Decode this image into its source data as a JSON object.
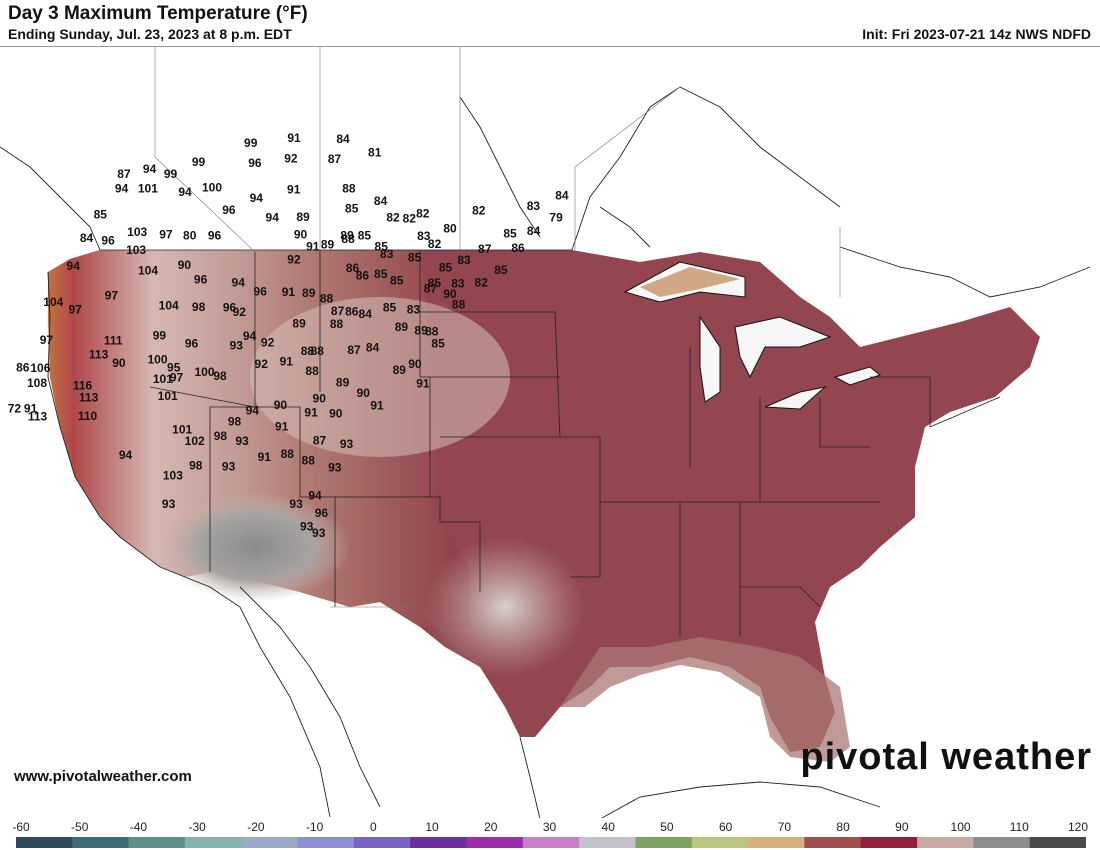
{
  "header": {
    "title": "Day 3 Maximum Temperature (°F)",
    "subtitle": "Ending Sunday, Jul. 23, 2023 at 8 p.m. EDT",
    "init": "Init: Fri 2023-07-21 14z NWS NDFD"
  },
  "footer": {
    "website": "www.pivotalweather.com",
    "brand": "pivotal weather"
  },
  "colorbar": {
    "ticks": [
      "-60",
      "-50",
      "-40",
      "-30",
      "-20",
      "-10",
      "0",
      "10",
      "20",
      "30",
      "40",
      "50",
      "60",
      "70",
      "80",
      "90",
      "100",
      "110",
      "120"
    ],
    "colors": [
      "#2c4a57",
      "#3f6b77",
      "#5e8f8c",
      "#85b2ad",
      "#9aa9c8",
      "#8c8fd0",
      "#7a63c4",
      "#6b2e9e",
      "#9c2ea7",
      "#c97ec9",
      "#c2c2c8",
      "#7fa35e",
      "#b9c67e",
      "#d6b27b",
      "#a04f4f",
      "#8f1f3c",
      "#c8a8a2",
      "#8d8d8d",
      "#4a4a4a"
    ]
  },
  "map": {
    "temperatures": [
      {
        "v": "87",
        "lon": -123.4,
        "lat": 48.0
      },
      {
        "v": "94",
        "lon": -120.2,
        "lat": 47.9
      },
      {
        "v": "94",
        "lon": -122.6,
        "lat": 47.1
      },
      {
        "v": "101",
        "lon": -119.0,
        "lat": 46.7
      },
      {
        "v": "99",
        "lon": -117.0,
        "lat": 47.3
      },
      {
        "v": "99",
        "lon": -114.1,
        "lat": 47.7
      },
      {
        "v": "99",
        "lon": -108.5,
        "lat": 48.3
      },
      {
        "v": "91",
        "lon": -103.3,
        "lat": 48.3
      },
      {
        "v": "84",
        "lon": -97.1,
        "lat": 48.0
      },
      {
        "v": "85",
        "lon": -123.6,
        "lat": 45.8
      },
      {
        "v": "84",
        "lon": -123.7,
        "lat": 44.5
      },
      {
        "v": "94",
        "lon": -123.4,
        "lat": 42.9
      },
      {
        "v": "96",
        "lon": -120.6,
        "lat": 44.0
      },
      {
        "v": "103",
        "lon": -117.3,
        "lat": 44.1
      },
      {
        "v": "103",
        "lon": -116.2,
        "lat": 43.0
      },
      {
        "v": "97",
        "lon": -113.4,
        "lat": 43.6
      },
      {
        "v": "94",
        "lon": -113.8,
        "lat": 46.0
      },
      {
        "v": "100",
        "lon": -110.6,
        "lat": 46.0
      },
      {
        "v": "96",
        "lon": -106.7,
        "lat": 47.1
      },
      {
        "v": "92",
        "lon": -102.4,
        "lat": 47.1
      },
      {
        "v": "87",
        "lon": -97.0,
        "lat": 46.9
      },
      {
        "v": "81",
        "lon": -92.5,
        "lat": 47.2
      },
      {
        "v": "91",
        "lon": -100.2,
        "lat": 45.3
      },
      {
        "v": "88",
        "lon": -93.6,
        "lat": 45.2
      },
      {
        "v": "85",
        "lon": -92.2,
        "lat": 44.1
      },
      {
        "v": "84",
        "lon": -89.2,
        "lat": 44.5
      },
      {
        "v": "94",
        "lon": -104.3,
        "lat": 45.0
      },
      {
        "v": "96",
        "lon": -107.0,
        "lat": 44.5
      },
      {
        "v": "80",
        "lon": -110.3,
        "lat": 43.3
      },
      {
        "v": "96",
        "lon": -107.2,
        "lat": 43.1
      },
      {
        "v": "89",
        "lon": -97.5,
        "lat": 43.7
      },
      {
        "v": "94",
        "lon": -101.2,
        "lat": 43.8
      },
      {
        "v": "90",
        "lon": -96.8,
        "lat": 42.7
      },
      {
        "v": "89",
        "lon": -93.1,
        "lat": 42.1
      },
      {
        "v": "88",
        "lon": -91.0,
        "lat": 42.4
      },
      {
        "v": "85",
        "lon": -89.3,
        "lat": 42.6
      },
      {
        "v": "82",
        "lon": -86.9,
        "lat": 43.6
      },
      {
        "v": "82",
        "lon": -85.0,
        "lat": 43.6
      },
      {
        "v": "82",
        "lon": -83.7,
        "lat": 43.9
      },
      {
        "v": "83",
        "lon": -82.5,
        "lat": 42.7
      },
      {
        "v": "80",
        "lon": -79.9,
        "lat": 43.2
      },
      {
        "v": "82",
        "lon": -77.5,
        "lat": 44.3
      },
      {
        "v": "83",
        "lon": -71.6,
        "lat": 44.9
      },
      {
        "v": "84",
        "lon": -68.9,
        "lat": 45.7
      },
      {
        "v": "79",
        "lon": -68.6,
        "lat": 44.5
      },
      {
        "v": "85",
        "lon": -73.0,
        "lat": 43.3
      },
      {
        "v": "84",
        "lon": -70.5,
        "lat": 43.6
      },
      {
        "v": "86",
        "lon": -71.5,
        "lat": 42.6
      },
      {
        "v": "87",
        "lon": -75.1,
        "lat": 42.3
      },
      {
        "v": "83",
        "lon": -76.9,
        "lat": 41.6
      },
      {
        "v": "85",
        "lon": -78.6,
        "lat": 41.1
      },
      {
        "v": "82",
        "lon": -80.9,
        "lat": 42.3
      },
      {
        "v": "85",
        "lon": -82.5,
        "lat": 41.5
      },
      {
        "v": "85",
        "lon": -86.8,
        "lat": 42.0
      },
      {
        "v": "104",
        "lon": -123.4,
        "lat": 40.9
      },
      {
        "v": "97",
        "lon": -120.0,
        "lat": 40.1
      },
      {
        "v": "97",
        "lon": -116.3,
        "lat": 40.5
      },
      {
        "v": "104",
        "lon": -113.3,
        "lat": 41.6
      },
      {
        "v": "90",
        "lon": -109.1,
        "lat": 41.6
      },
      {
        "v": "96",
        "lon": -106.2,
        "lat": 40.6
      },
      {
        "v": "104",
        "lon": -108.5,
        "lat": 39.3
      },
      {
        "v": "98",
        "lon": -104.8,
        "lat": 39.0
      },
      {
        "v": "94",
        "lon": -101.5,
        "lat": 40.2
      },
      {
        "v": "92",
        "lon": -96.2,
        "lat": 41.3
      },
      {
        "v": "91",
        "lon": -94.7,
        "lat": 42.0
      },
      {
        "v": "89",
        "lon": -91.3,
        "lat": 42.6
      },
      {
        "v": "86",
        "lon": -89.0,
        "lat": 40.8
      },
      {
        "v": "86",
        "lon": -87.5,
        "lat": 40.4
      },
      {
        "v": "85",
        "lon": -85.5,
        "lat": 40.5
      },
      {
        "v": "83",
        "lon": -85.8,
        "lat": 41.6
      },
      {
        "v": "85",
        "lon": -83.4,
        "lat": 40.2
      },
      {
        "v": "85",
        "lon": -79.1,
        "lat": 40.2
      },
      {
        "v": "83",
        "lon": -76.5,
        "lat": 40.3
      },
      {
        "v": "85",
        "lon": -72.4,
        "lat": 41.3
      },
      {
        "v": "82",
        "lon": -74.0,
        "lat": 40.5
      },
      {
        "v": "97",
        "lon": -121.6,
        "lat": 38.6
      },
      {
        "v": "86",
        "lon": -122.7,
        "lat": 37.2
      },
      {
        "v": "106",
        "lon": -120.4,
        "lat": 36.9
      },
      {
        "v": "108",
        "lon": -119.8,
        "lat": 36.0
      },
      {
        "v": "72",
        "lon": -120.9,
        "lat": 34.7
      },
      {
        "v": "91",
        "lon": -118.9,
        "lat": 34.5
      },
      {
        "v": "113",
        "lon": -117.5,
        "lat": 33.9
      },
      {
        "v": "111",
        "lon": -113.1,
        "lat": 37.7
      },
      {
        "v": "113",
        "lon": -114.0,
        "lat": 37.0
      },
      {
        "v": "116",
        "lon": -114.0,
        "lat": 35.3
      },
      {
        "v": "113",
        "lon": -112.5,
        "lat": 34.5
      },
      {
        "v": "110",
        "lon": -111.5,
        "lat": 33.4
      },
      {
        "v": "90",
        "lon": -111.0,
        "lat": 36.3
      },
      {
        "v": "99",
        "lon": -107.8,
        "lat": 37.6
      },
      {
        "v": "100",
        "lon": -106.6,
        "lat": 36.2
      },
      {
        "v": "101",
        "lon": -104.8,
        "lat": 35.0
      },
      {
        "v": "96",
        "lon": -101.1,
        "lat": 38.8
      },
      {
        "v": "92",
        "lon": -99.7,
        "lat": 38.5
      },
      {
        "v": "96",
        "lon": -98.4,
        "lat": 39.6
      },
      {
        "v": "91",
        "lon": -95.1,
        "lat": 39.5
      },
      {
        "v": "89",
        "lon": -92.7,
        "lat": 39.4
      },
      {
        "v": "88",
        "lon": -90.4,
        "lat": 39.1
      },
      {
        "v": "87",
        "lon": -88.5,
        "lat": 38.4
      },
      {
        "v": "88",
        "lon": -88.0,
        "lat": 37.7
      },
      {
        "v": "86",
        "lon": -86.9,
        "lat": 38.4
      },
      {
        "v": "84",
        "lon": -85.3,
        "lat": 38.3
      },
      {
        "v": "85",
        "lon": -82.9,
        "lat": 38.7
      },
      {
        "v": "83",
        "lon": -80.2,
        "lat": 38.7
      },
      {
        "v": "87",
        "lon": -79.3,
        "lat": 39.9
      },
      {
        "v": "90",
        "lon": -76.9,
        "lat": 39.7
      },
      {
        "v": "88",
        "lon": -75.5,
        "lat": 39.2
      },
      {
        "v": "89",
        "lon": -78.4,
        "lat": 37.6
      },
      {
        "v": "89",
        "lon": -80.7,
        "lat": 37.7
      },
      {
        "v": "88",
        "lon": -77.2,
        "lat": 37.6
      },
      {
        "v": "85",
        "lon": -76.0,
        "lat": 37.0
      },
      {
        "v": "96",
        "lon": -103.5,
        "lat": 36.9
      },
      {
        "v": "95",
        "lon": -104.2,
        "lat": 35.6
      },
      {
        "v": "97",
        "lon": -103.3,
        "lat": 35.0
      },
      {
        "v": "101",
        "lon": -103.3,
        "lat": 34.0
      },
      {
        "v": "100",
        "lon": -100.4,
        "lat": 35.2
      },
      {
        "v": "98",
        "lon": -98.4,
        "lat": 34.9
      },
      {
        "v": "93",
        "lon": -98.2,
        "lat": 36.6
      },
      {
        "v": "94",
        "lon": -97.2,
        "lat": 37.1
      },
      {
        "v": "92",
        "lon": -94.4,
        "lat": 35.5
      },
      {
        "v": "92",
        "lon": -94.8,
        "lat": 36.7
      },
      {
        "v": "89",
        "lon": -92.2,
        "lat": 37.7
      },
      {
        "v": "91",
        "lon": -91.7,
        "lat": 35.6
      },
      {
        "v": "88",
        "lon": -89.9,
        "lat": 36.2
      },
      {
        "v": "88",
        "lon": -88.4,
        "lat": 35.1
      },
      {
        "v": "88",
        "lon": -88.8,
        "lat": 36.2
      },
      {
        "v": "87",
        "lon": -84.8,
        "lat": 36.3
      },
      {
        "v": "84",
        "lon": -82.9,
        "lat": 36.5
      },
      {
        "v": "89",
        "lon": -79.0,
        "lat": 35.4
      },
      {
        "v": "90",
        "lon": -77.6,
        "lat": 35.8
      },
      {
        "v": "90",
        "lon": -81.8,
        "lat": 34.0
      },
      {
        "v": "89",
        "lon": -84.5,
        "lat": 34.5
      },
      {
        "v": "91",
        "lon": -75.9,
        "lat": 34.8
      },
      {
        "v": "91",
        "lon": -79.8,
        "lat": 33.4
      },
      {
        "v": "90",
        "lon": -86.3,
        "lat": 33.6
      },
      {
        "v": "91",
        "lon": -86.5,
        "lat": 32.8
      },
      {
        "v": "90",
        "lon": -83.8,
        "lat": 32.8
      },
      {
        "v": "87",
        "lon": -84.3,
        "lat": 31.3
      },
      {
        "v": "88",
        "lon": -84.6,
        "lat": 30.2
      },
      {
        "v": "90",
        "lon": -90.2,
        "lat": 33.2
      },
      {
        "v": "91",
        "lon": -89.0,
        "lat": 32.0
      },
      {
        "v": "94",
        "lon": -93.0,
        "lat": 32.9
      },
      {
        "v": "98",
        "lon": -94.4,
        "lat": 32.3
      },
      {
        "v": "93",
        "lon": -92.6,
        "lat": 31.2
      },
      {
        "v": "93",
        "lon": -92.8,
        "lat": 29.8
      },
      {
        "v": "91",
        "lon": -89.4,
        "lat": 30.3
      },
      {
        "v": "88",
        "lon": -87.1,
        "lat": 30.5
      },
      {
        "v": "93",
        "lon": -81.3,
        "lat": 31.2
      },
      {
        "v": "93",
        "lon": -81.5,
        "lat": 29.9
      },
      {
        "v": "94",
        "lon": -82.3,
        "lat": 28.3
      },
      {
        "v": "96",
        "lon": -80.9,
        "lat": 27.4
      },
      {
        "v": "93",
        "lon": -81.8,
        "lat": 26.6
      },
      {
        "v": "93",
        "lon": -80.3,
        "lat": 26.3
      },
      {
        "v": "93",
        "lon": -83.9,
        "lat": 27.8
      },
      {
        "v": "94",
        "lon": -104.8,
        "lat": 30.8
      },
      {
        "v": "101",
        "lon": -99.8,
        "lat": 32.0
      },
      {
        "v": "102",
        "lon": -97.8,
        "lat": 31.3
      },
      {
        "v": "98",
        "lon": -95.2,
        "lat": 31.5
      },
      {
        "v": "98",
        "lon": -96.4,
        "lat": 29.9
      },
      {
        "v": "103",
        "lon": -98.4,
        "lat": 29.4
      },
      {
        "v": "93",
        "lon": -97.4,
        "lat": 27.8
      }
    ]
  }
}
